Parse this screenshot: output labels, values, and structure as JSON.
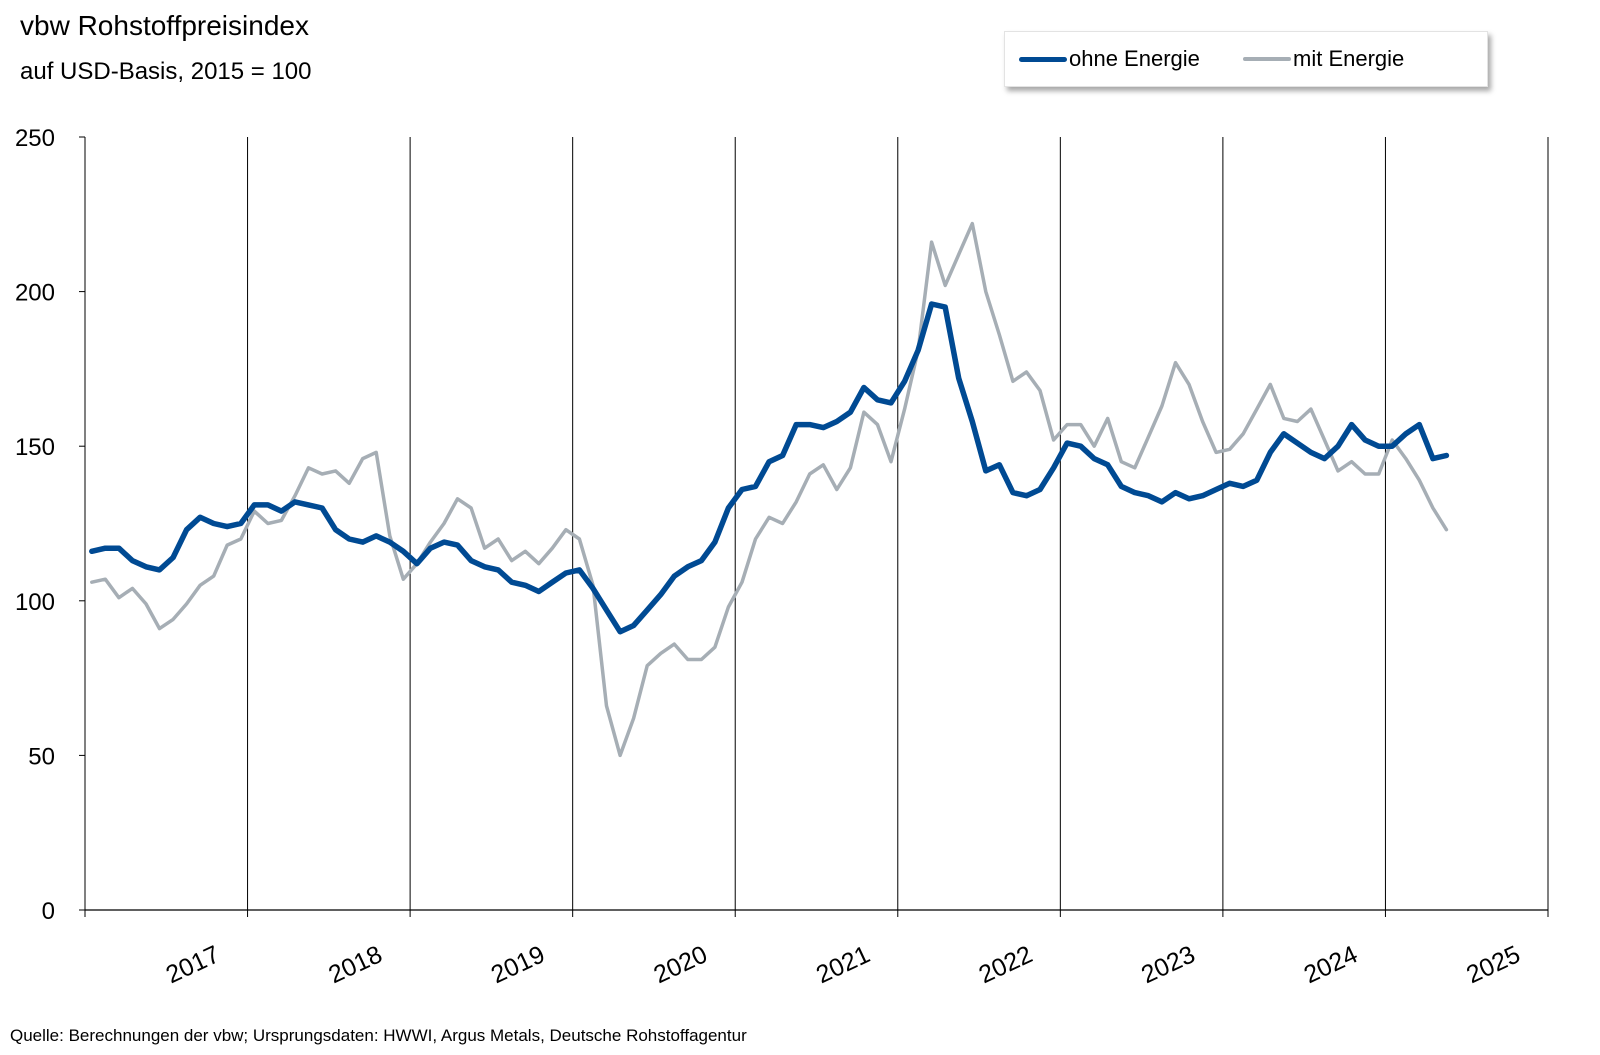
{
  "chart_data": {
    "type": "line",
    "title": "vbw Rohstoffpreisindex",
    "subtitle": "auf USD-Basis, 2015 = 100",
    "source": "Quelle: Berechnungen der vbw; Ursprungsdaten: HWWI, Argus Metals, Deutsche Rohstoffagentur",
    "ylim": [
      0,
      250
    ],
    "yticks": [
      0,
      50,
      100,
      150,
      200,
      250
    ],
    "xticks": [
      "2017",
      "2018",
      "2019",
      "2020",
      "2021",
      "2022",
      "2023",
      "2024",
      "2025"
    ],
    "grid": "vertical lines at year boundaries",
    "legend_position": "top-right",
    "x_start": "2017-01",
    "frequency": "monthly",
    "series": [
      {
        "name": "ohne Energie",
        "color": "#004a93",
        "values": [
          116,
          117,
          117,
          113,
          111,
          110,
          114,
          123,
          127,
          125,
          124,
          125,
          131,
          131,
          129,
          132,
          131,
          130,
          123,
          120,
          119,
          121,
          119,
          116,
          112,
          117,
          119,
          118,
          113,
          111,
          110,
          106,
          105,
          103,
          106,
          109,
          110,
          104,
          97,
          90,
          92,
          97,
          102,
          108,
          111,
          113,
          119,
          130,
          136,
          137,
          145,
          147,
          157,
          157,
          156,
          158,
          161,
          169,
          165,
          164,
          171,
          181,
          196,
          195,
          172,
          158,
          142,
          144,
          135,
          134,
          136,
          143,
          151,
          150,
          146,
          144,
          137,
          135,
          134,
          132,
          135,
          133,
          134,
          136,
          138,
          137,
          139,
          148,
          154,
          151,
          148,
          146,
          150,
          157,
          152,
          150,
          150,
          154,
          157,
          146,
          147
        ]
      },
      {
        "name": "mit Energie",
        "color": "#a6aeb5",
        "values": [
          106,
          107,
          101,
          104,
          99,
          91,
          94,
          99,
          105,
          108,
          118,
          120,
          129,
          125,
          126,
          134,
          143,
          141,
          142,
          138,
          146,
          148,
          121,
          107,
          112,
          119,
          125,
          133,
          130,
          117,
          120,
          113,
          116,
          112,
          117,
          123,
          120,
          105,
          66,
          50,
          62,
          79,
          83,
          86,
          81,
          81,
          85,
          98,
          106,
          120,
          127,
          125,
          132,
          141,
          144,
          136,
          143,
          161,
          157,
          145,
          162,
          181,
          216,
          202,
          212,
          222,
          200,
          186,
          171,
          174,
          168,
          152,
          157,
          157,
          150,
          159,
          145,
          143,
          153,
          163,
          177,
          170,
          158,
          148,
          149,
          154,
          162,
          170,
          159,
          158,
          162,
          152,
          142,
          145,
          141,
          141,
          152,
          146,
          139,
          130,
          123
        ]
      }
    ]
  }
}
